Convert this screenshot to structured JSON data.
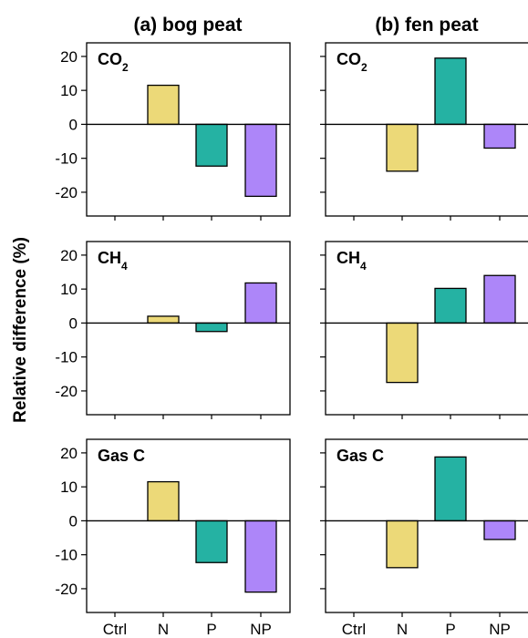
{
  "figure": {
    "ylabel": "Relative difference (%)",
    "columns": [
      {
        "key": "bog",
        "title": "(a) bog peat"
      },
      {
        "key": "fen",
        "title": "(b) fen peat"
      }
    ],
    "colors": {
      "Ctrl": "#ffffff",
      "N": "#ecd978",
      "P": "#25b2a3",
      "NP": "#ad86f9"
    }
  },
  "chart_data": [
    {
      "type": "bar",
      "title": "(a) bog peat",
      "panel_label": "CO2",
      "categories": [
        "Ctrl",
        "N",
        "P",
        "NP"
      ],
      "values": [
        0,
        11.5,
        -12.3,
        -21.2
      ],
      "ylim": [
        -27,
        24
      ],
      "yticks": [
        20,
        10,
        0,
        -10,
        -20
      ],
      "ytick_labels": [
        "20",
        "10",
        "0",
        "-10",
        "-20"
      ],
      "ylabel": "Relative difference (%)"
    },
    {
      "type": "bar",
      "title": "(b) fen peat",
      "panel_label": "CO2",
      "categories": [
        "Ctrl",
        "N",
        "P",
        "NP"
      ],
      "values": [
        0,
        -13.8,
        19.5,
        -7.0
      ],
      "ylim": [
        -27,
        24
      ],
      "yticks": [
        20,
        10,
        0,
        -10,
        -20
      ]
    },
    {
      "type": "bar",
      "title": "(a) bog peat",
      "panel_label": "CH4",
      "categories": [
        "Ctrl",
        "N",
        "P",
        "NP"
      ],
      "values": [
        0,
        2.0,
        -2.5,
        11.8
      ],
      "ylim": [
        -27,
        24
      ],
      "yticks": [
        20,
        10,
        0,
        -10,
        -20
      ],
      "ytick_labels": [
        "20",
        "10",
        "0",
        "-10",
        "-20"
      ],
      "ylabel": "Relative difference (%)"
    },
    {
      "type": "bar",
      "title": "(b) fen peat",
      "panel_label": "CH4",
      "categories": [
        "Ctrl",
        "N",
        "P",
        "NP"
      ],
      "values": [
        0,
        -17.5,
        10.2,
        14.0
      ],
      "ylim": [
        -27,
        24
      ],
      "yticks": [
        20,
        10,
        0,
        -10,
        -20
      ]
    },
    {
      "type": "bar",
      "title": "(a) bog peat",
      "panel_label": "Gas C",
      "categories": [
        "Ctrl",
        "N",
        "P",
        "NP"
      ],
      "values": [
        0,
        11.5,
        -12.3,
        -21.0
      ],
      "ylim": [
        -27,
        24
      ],
      "yticks": [
        20,
        10,
        0,
        -10,
        -20
      ],
      "ytick_labels": [
        "20",
        "10",
        "0",
        "-10",
        "-20"
      ],
      "ylabel": "Relative difference (%)"
    },
    {
      "type": "bar",
      "title": "(b) fen peat",
      "panel_label": "Gas C",
      "categories": [
        "Ctrl",
        "N",
        "P",
        "NP"
      ],
      "values": [
        0,
        -13.8,
        18.8,
        -5.5
      ],
      "ylim": [
        -27,
        24
      ],
      "yticks": [
        20,
        10,
        0,
        -10,
        -20
      ]
    }
  ]
}
